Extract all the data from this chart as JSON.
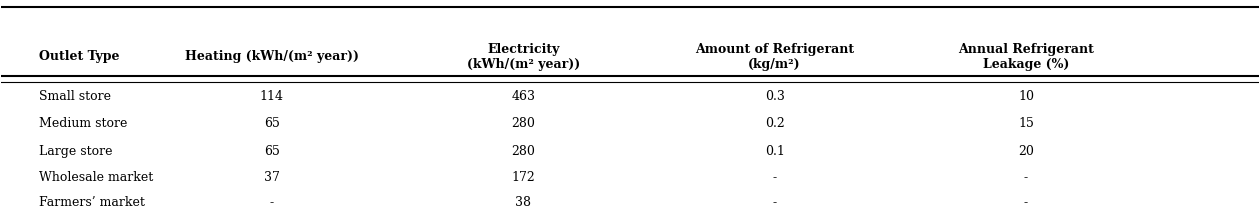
{
  "col_headers": [
    "Outlet Type",
    "Heating (kWh/(m² year))",
    "Electricity\n(kWh/(m² year))",
    "Amount of Refrigerant\n(kg/m²)",
    "Annual Refrigerant\nLeakage (%)"
  ],
  "rows": [
    [
      "Small store",
      "114",
      "463",
      "0.3",
      "10"
    ],
    [
      "Medium store",
      "65",
      "280",
      "0.2",
      "15"
    ],
    [
      "Large store",
      "65",
      "280",
      "0.1",
      "20"
    ],
    [
      "Wholesale market",
      "37",
      "172",
      "-",
      "-"
    ],
    [
      "Farmers’ market",
      "-",
      "38",
      "-",
      "-"
    ]
  ],
  "col_aligns": [
    "left",
    "center",
    "center",
    "center",
    "center"
  ],
  "header_fontsize": 9,
  "row_fontsize": 9,
  "background_color": "#ffffff",
  "text_color": "#000000"
}
